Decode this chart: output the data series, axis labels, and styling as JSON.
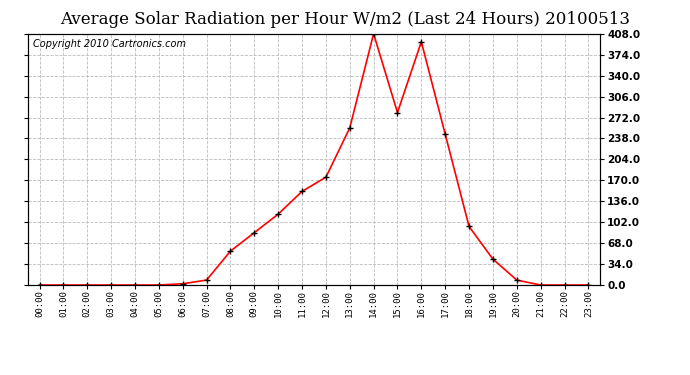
{
  "title": "Average Solar Radiation per Hour W/m2 (Last 24 Hours) 20100513",
  "copyright_text": "Copyright 2010 Cartronics.com",
  "hours": [
    "00:00",
    "01:00",
    "02:00",
    "03:00",
    "04:00",
    "05:00",
    "06:00",
    "07:00",
    "08:00",
    "09:00",
    "10:00",
    "11:00",
    "12:00",
    "13:00",
    "14:00",
    "15:00",
    "16:00",
    "17:00",
    "18:00",
    "19:00",
    "20:00",
    "21:00",
    "22:00",
    "23:00"
  ],
  "values": [
    0.0,
    0.0,
    0.0,
    0.0,
    0.0,
    0.0,
    2.0,
    8.0,
    55.0,
    85.0,
    115.0,
    152.0,
    175.0,
    255.0,
    408.0,
    280.0,
    395.0,
    245.0,
    95.0,
    42.0,
    8.0,
    0.0,
    0.0,
    0.0
  ],
  "line_color": "#ff0000",
  "marker_color": "#000000",
  "bg_color": "#ffffff",
  "grid_color": "#bbbbbb",
  "ylim": [
    0.0,
    408.0
  ],
  "yticks": [
    0.0,
    34.0,
    68.0,
    102.0,
    136.0,
    170.0,
    204.0,
    238.0,
    272.0,
    306.0,
    340.0,
    374.0,
    408.0
  ],
  "title_fontsize": 12,
  "copyright_fontsize": 7
}
